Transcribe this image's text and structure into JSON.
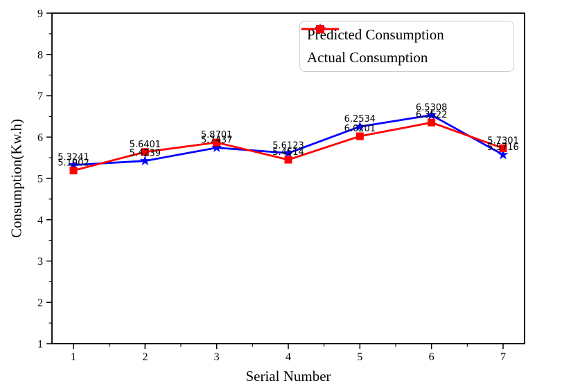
{
  "figure": {
    "background": "#ffffff"
  },
  "legend": {
    "entries": [
      {
        "label": "Predicted Consumption",
        "color": "#0000ff",
        "marker": "star"
      },
      {
        "label": "Actual Consumption",
        "color": "#ff0000",
        "marker": "square"
      }
    ]
  },
  "chart_data": {
    "type": "line",
    "title": "",
    "xlabel": "Serial Number",
    "ylabel": "Consumption(Kw.h)",
    "x": [
      1,
      2,
      3,
      4,
      5,
      6,
      7
    ],
    "xticks": [
      1,
      2,
      3,
      4,
      5,
      6,
      7
    ],
    "yticks": [
      1,
      2,
      3,
      4,
      5,
      6,
      7,
      8,
      9
    ],
    "xlim": [
      0.7,
      7.3
    ],
    "ylim": [
      1,
      9
    ],
    "grid": false,
    "legend_position": "upper right",
    "series": [
      {
        "name": "Predicted Consumption",
        "color": "#0000ff",
        "marker": "star",
        "values": [
          5.3241,
          5.4239,
          5.7437,
          5.6123,
          6.2534,
          6.5308,
          5.5716
        ],
        "point_labels": [
          "5.3241",
          "5.4239",
          "5.7437",
          "5.6123",
          "6.2534",
          "6.5308",
          "5.5716"
        ]
      },
      {
        "name": "Actual Consumption",
        "color": "#ff0000",
        "marker": "square",
        "values": [
          5.1902,
          5.6401,
          5.8701,
          5.4514,
          6.0201,
          6.3522,
          5.7301
        ],
        "point_labels": [
          "5.1902",
          "5.6401",
          "5.8701",
          "5.4514",
          "6.0201",
          "6.3522",
          "5.7301"
        ]
      }
    ]
  }
}
